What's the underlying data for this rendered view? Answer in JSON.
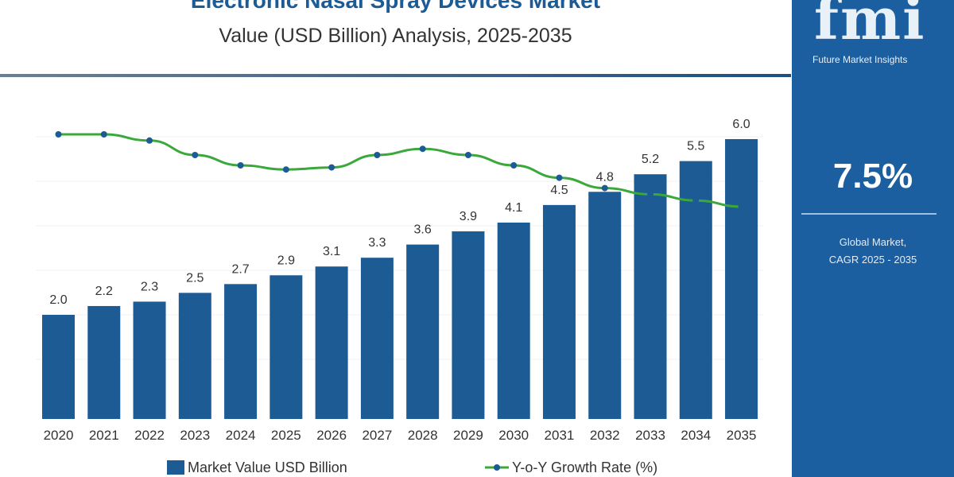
{
  "chart_data": {
    "type": "bar",
    "title": "Electronic Nasal Spray Devices Market",
    "subtitle": "Value (USD Billion) Analysis, 2025-2035",
    "categories": [
      "2020",
      "2021",
      "2022",
      "2023",
      "2024",
      "2025",
      "2026",
      "2027",
      "2028",
      "2029",
      "2030",
      "2031",
      "2032",
      "2033",
      "2034",
      "2035"
    ],
    "series": [
      {
        "name": "Market Value USD Billion",
        "type": "bar",
        "color": "#1c5b93",
        "values": [
          2.0,
          2.2,
          2.3,
          2.5,
          2.7,
          2.9,
          3.1,
          3.3,
          3.6,
          3.9,
          4.1,
          4.5,
          4.8,
          5.2,
          5.5,
          6.0
        ]
      },
      {
        "name": "Y-o-Y Growth Rate (%)",
        "type": "line",
        "color": "#3aa83a",
        "values": [
          10.0,
          10.0,
          9.7,
          9.0,
          8.5,
          8.3,
          8.4,
          9.0,
          9.3,
          9.0,
          8.5,
          7.9,
          7.4,
          7.1,
          6.8,
          6.5
        ]
      }
    ],
    "data_labels": [
      "2.0",
      "2.2",
      "2.3",
      "2.5",
      "2.7",
      "2.9",
      "3.1",
      "3.3",
      "3.6",
      "3.9",
      "4.1",
      "4.5",
      "4.8",
      "5.2",
      "5.5",
      "6.0"
    ],
    "legend": "bottom",
    "grid": true
  },
  "brand": {
    "logo": "fmi",
    "name": "Future Market Insights"
  },
  "cagr": {
    "value": "7.5%",
    "label_line1": "Global Market,",
    "label_line2": "CAGR 2025 - 2035"
  }
}
